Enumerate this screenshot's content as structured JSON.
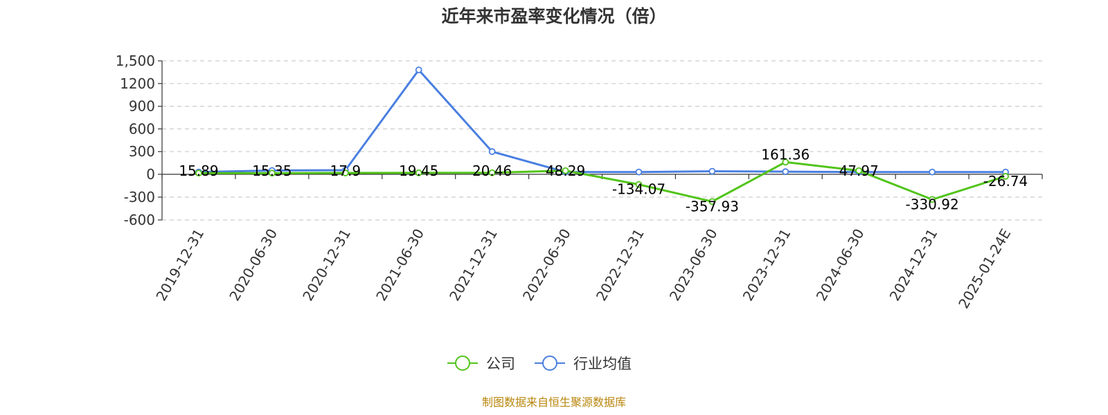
{
  "chart_data": {
    "type": "line",
    "title": "近年来市盈率变化情况（倍）",
    "ylabel": "",
    "xlabel": "",
    "ylim": [
      -600,
      1500
    ],
    "yticks": [
      -600,
      -300,
      0,
      300,
      600,
      900,
      1200,
      1500
    ],
    "ytick_labels": [
      "-600",
      "-300",
      "0",
      "300",
      "600",
      "900",
      "1200",
      "1,500"
    ],
    "categories": [
      "2019-12-31",
      "2020-06-30",
      "2020-12-31",
      "2021-06-30",
      "2021-12-31",
      "2022-06-30",
      "2022-12-31",
      "2023-06-30",
      "2023-12-31",
      "2024-06-30",
      "2024-12-31",
      "2025-01-24E"
    ],
    "grid": true,
    "legend_position": "bottom-center",
    "series": [
      {
        "name": "公司",
        "color": "#52c41a",
        "values": [
          15.89,
          15.35,
          17.9,
          19.45,
          20.46,
          48.29,
          -134.07,
          -357.93,
          161.36,
          47.97,
          -330.92,
          -26.74
        ],
        "labels": [
          "15.89",
          "15.35",
          "17.9",
          "19.45",
          "20.46",
          "48.29",
          "-134.07",
          "-357.93",
          "161.36",
          "47.97",
          "-330.92",
          "-26.74"
        ]
      },
      {
        "name": "行业均值",
        "color": "#4a7fe0",
        "values": [
          30,
          50,
          55,
          1380,
          300,
          30,
          30,
          40,
          35,
          30,
          30,
          30
        ]
      }
    ],
    "source": "制图数据来自恒生聚源数据库"
  }
}
